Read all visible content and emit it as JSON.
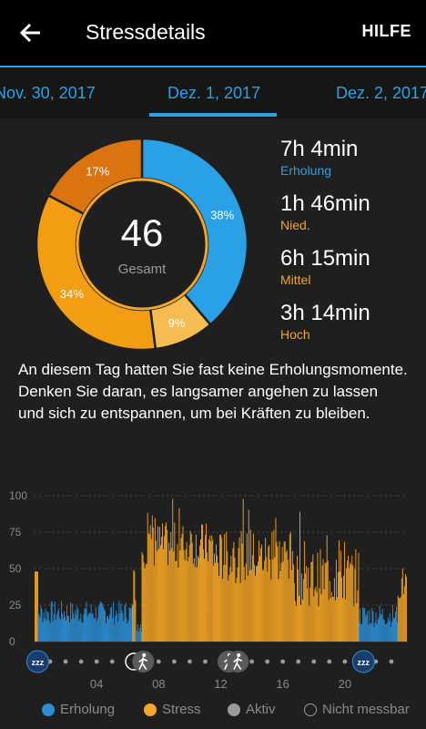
{
  "app": {
    "title": "Stressdetails",
    "help": "HILFE"
  },
  "dates": {
    "prev": "Nov. 30, 2017",
    "current": "Dez. 1, 2017",
    "next": "Dez. 2, 2017"
  },
  "summary": {
    "score": "46",
    "score_label": "Gesamt"
  },
  "segments": [
    {
      "label": "Erholung",
      "percent": 38,
      "text": "38%",
      "color": "#2aa1e6"
    },
    {
      "label": "Nied.",
      "percent": 9,
      "text": "9%",
      "color": "#f5bd51"
    },
    {
      "label": "Mittel",
      "percent": 34,
      "text": "34%",
      "color": "#f29d12"
    },
    {
      "label": "Hoch",
      "percent": 17,
      "text": "17%",
      "color": "#db7410"
    }
  ],
  "stats": [
    {
      "time": "7h 4min",
      "label": "Erholung",
      "color": "#2aa1e6"
    },
    {
      "time": "1h 46min",
      "label": "Nied.",
      "color": "#f5a623"
    },
    {
      "time": "6h 15min",
      "label": "Mittel",
      "color": "#f5a623"
    },
    {
      "time": "3h 14min",
      "label": "Hoch",
      "color": "#f5a623"
    }
  ],
  "description": "An diesem Tag hatten Sie fast keine Erholungsmomente. Denken Sie daran, es langsamer angehen zu lassen und sich zu entspannen, um bei Kräften zu bleiben.",
  "chart_data": {
    "type": "bar",
    "y_ticks": [
      "100",
      "75",
      "50",
      "25",
      "0"
    ],
    "ylim": [
      0,
      100
    ],
    "x_ticks": [
      "04",
      "08",
      "12",
      "16",
      "20"
    ],
    "xlim_hours": [
      0,
      24
    ],
    "colors": {
      "erholung": "#2a8fd6",
      "stress": "#f5a623",
      "grid": "#4a4a4a",
      "axis": "#8a8a8a"
    },
    "blocks": [
      {
        "type": "stress",
        "start": 0.0,
        "end": 0.2,
        "mean": 48,
        "jitter": 0
      },
      {
        "type": "erholung",
        "start": 0.2,
        "end": 6.3,
        "mean": 20,
        "jitter": 8
      },
      {
        "type": "stress",
        "start": 6.3,
        "end": 6.5,
        "mean": 28,
        "jitter": 6
      },
      {
        "type": "erholung",
        "start": 6.5,
        "end": 6.9,
        "mean": 12,
        "jitter": 6
      },
      {
        "type": "stress",
        "start": 6.9,
        "end": 11.5,
        "mean": 66,
        "jitter": 16
      },
      {
        "type": "stress",
        "start": 11.5,
        "end": 16.6,
        "mean": 58,
        "jitter": 18
      },
      {
        "type": "stress",
        "start": 16.6,
        "end": 20.9,
        "mean": 44,
        "jitter": 20
      },
      {
        "type": "erholung",
        "start": 20.9,
        "end": 23.4,
        "mean": 18,
        "jitter": 8
      },
      {
        "type": "stress",
        "start": 23.4,
        "end": 24.0,
        "mean": 40,
        "jitter": 12
      }
    ],
    "activity_icons": [
      {
        "hour": 0.2,
        "icon": "sleep-icon"
      },
      {
        "hour": 6.4,
        "icon": "timer-icon"
      },
      {
        "hour": 7.0,
        "icon": "walk-icon"
      },
      {
        "hour": 12.5,
        "icon": "walk-icon"
      },
      {
        "hour": 13.1,
        "icon": "walk-icon"
      },
      {
        "hour": 21.2,
        "icon": "sleep-icon"
      }
    ],
    "timeline_dots_hours": [
      1,
      2,
      3,
      4,
      5,
      6,
      8,
      9,
      10,
      11,
      12,
      14,
      15,
      16,
      17,
      18,
      19,
      20,
      22,
      23
    ]
  },
  "legend": [
    {
      "label": "Erholung",
      "color": "#2a8fd6",
      "fill": true
    },
    {
      "label": "Stress",
      "color": "#f5a623",
      "fill": true
    },
    {
      "label": "Aktiv",
      "color": "#9a9a9a",
      "fill": true
    },
    {
      "label": "Nicht messbar",
      "color": "#9a9a9a",
      "fill": false
    }
  ]
}
